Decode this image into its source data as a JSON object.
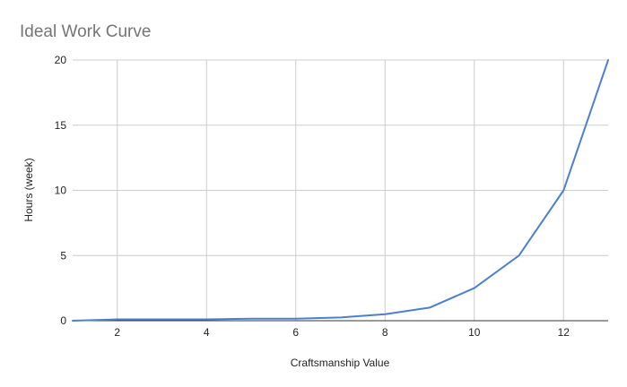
{
  "chart_data": {
    "type": "line",
    "title": "Ideal Work Curve",
    "xlabel": "Craftsmanship Value",
    "ylabel": "Hours (week)",
    "xlim": [
      1,
      13
    ],
    "ylim": [
      0,
      20
    ],
    "x_ticks": [
      2,
      4,
      6,
      8,
      10,
      12
    ],
    "y_ticks": [
      0,
      5,
      10,
      15,
      20
    ],
    "grid": true,
    "legend": "none",
    "series": [
      {
        "color": "#4e7fcf",
        "x": [
          1,
          2,
          3,
          4,
          5,
          6,
          7,
          8,
          9,
          10,
          11,
          12,
          13
        ],
        "values": [
          0,
          0.1,
          0.1,
          0.1,
          0.15,
          0.15,
          0.25,
          0.5,
          1,
          2.5,
          5,
          10,
          20
        ]
      }
    ]
  }
}
